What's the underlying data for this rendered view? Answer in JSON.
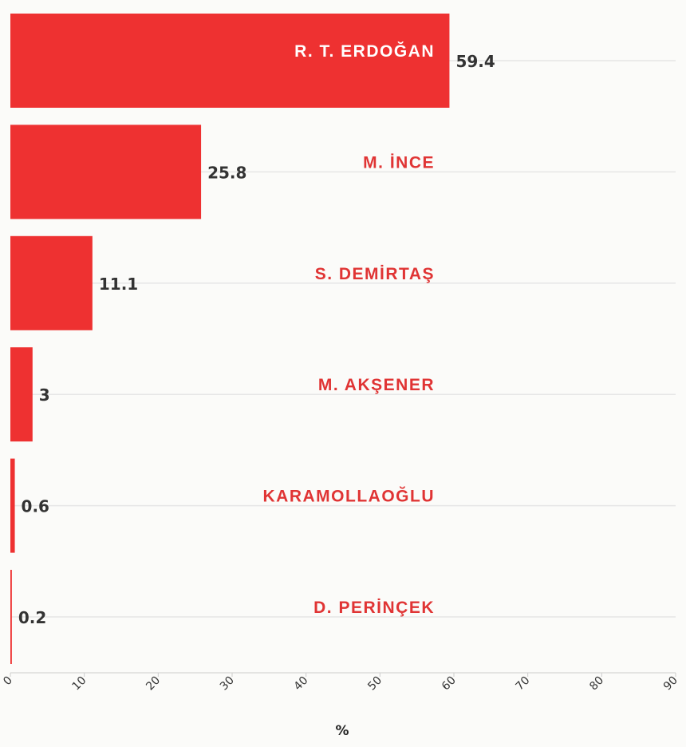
{
  "chart_data": {
    "type": "bar",
    "orientation": "horizontal",
    "categories": [
      "R. T. ERDOĞAN",
      "M. İNCE",
      "S. DEMİRTAŞ",
      "M. AKŞENER",
      "KARAMOLLAOĞLU",
      "D. PERİNÇEK"
    ],
    "values": [
      59.4,
      25.8,
      11.1,
      3,
      0.6,
      0.2
    ],
    "value_labels": [
      "59.4",
      "25.8",
      "11.1",
      "3",
      "0.6",
      "0.2"
    ],
    "xlabel": "%",
    "ylabel": "",
    "title": "",
    "xlim": [
      0,
      90
    ],
    "xticks": [
      "0",
      "10",
      "20",
      "30",
      "40",
      "50",
      "60",
      "70",
      "80",
      "90"
    ],
    "grid": "horizontal",
    "colors": {
      "bar": "#ee3131",
      "category_label_inside": "#ffffff",
      "category_label_outside": "#e03434",
      "value_label": "#333333",
      "grid": "#e6e6e6",
      "axis": "#cccccc",
      "tick_label": "#333333"
    }
  }
}
